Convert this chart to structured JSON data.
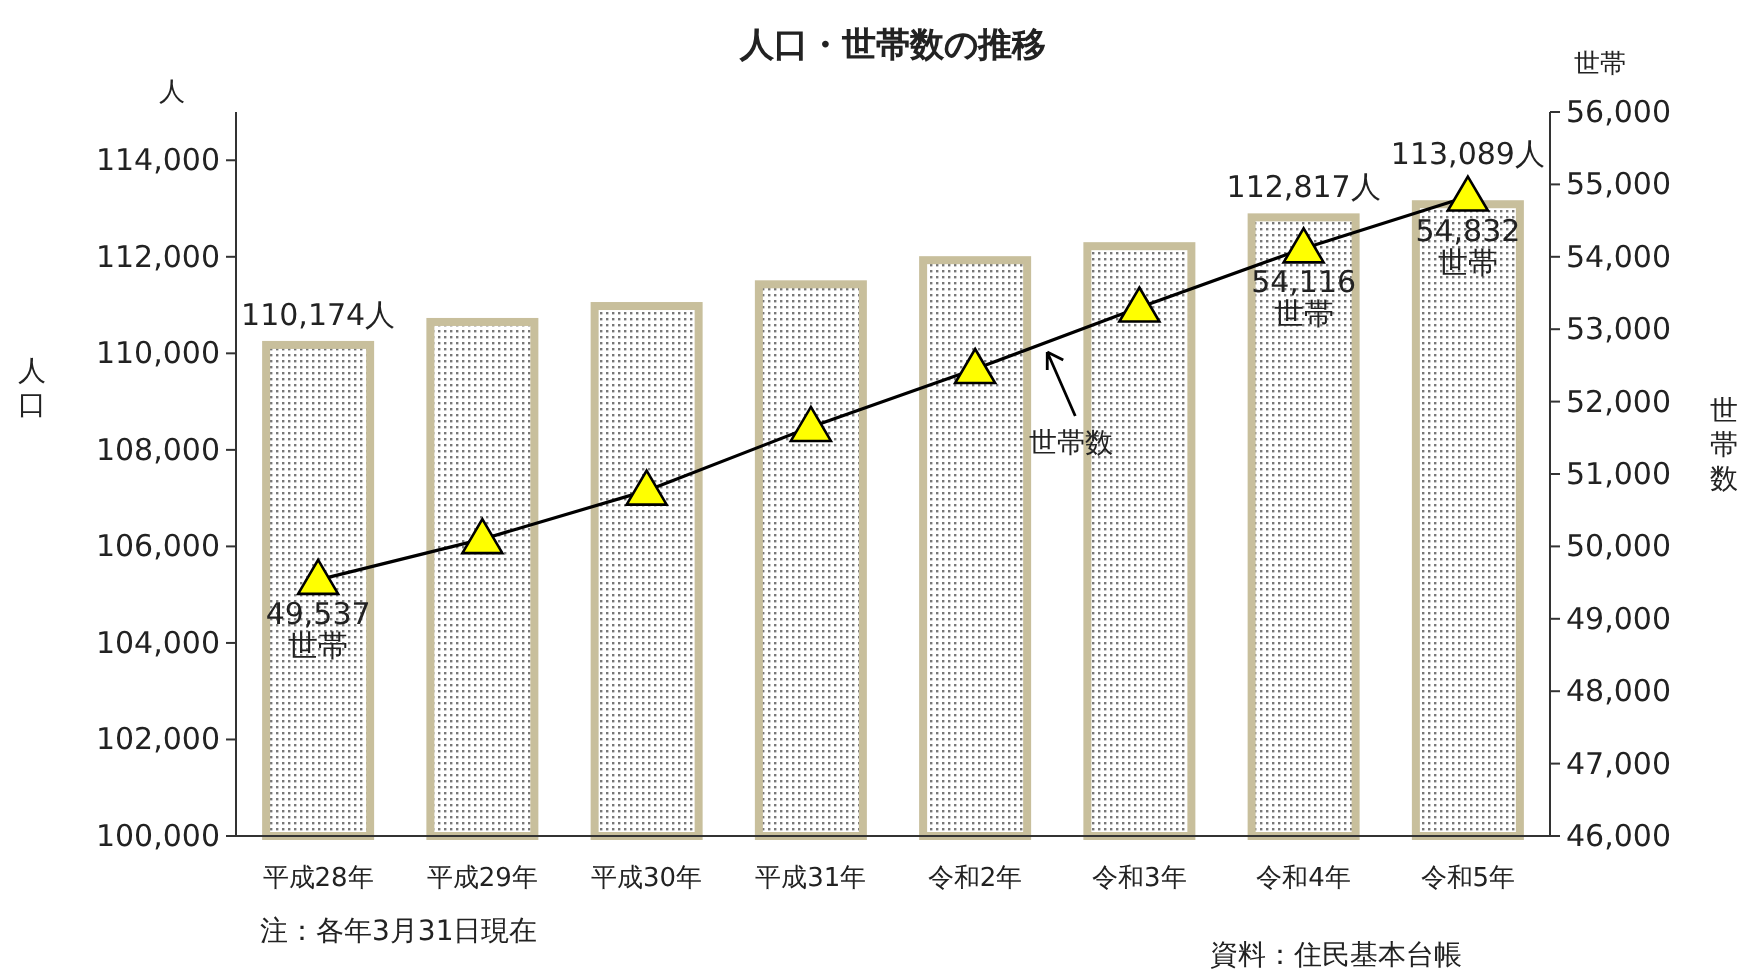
{
  "chart_data": {
    "type": "bar",
    "title": "人口・世帯数の推移",
    "categories": [
      "平成28年",
      "平成29年",
      "平成30年",
      "平成31年",
      "令和2年",
      "令和3年",
      "令和4年",
      "令和5年"
    ],
    "series": [
      {
        "color": "#c8bf9c",
        "values": [
          110174,
          110650,
          110980,
          111430,
          111930,
          112220,
          112817,
          113089
        ],
        "value_labels": [
          "110,174人",
          null,
          null,
          null,
          null,
          null,
          "112,817人",
          "113,089人"
        ]
      },
      {
        "type": "line",
        "axis": "y2",
        "color": "#ffff00",
        "marker": "triangle",
        "values": [
          49537,
          50100,
          50770,
          51650,
          52450,
          53300,
          54116,
          54832
        ],
        "value_labels": [
          "49,537 世帯",
          null,
          null,
          null,
          null,
          null,
          "54,116 世帯",
          "54,832 世帯"
        ]
      }
    ],
    "ylabel": "人口",
    "y2label": "世帯数",
    "ylim": [
      100000,
      115000
    ],
    "yticks": [
      {
        "value": 100000,
        "label": "100,000"
      },
      {
        "value": 102000,
        "label": "102,000"
      },
      {
        "value": 104000,
        "label": "104,000"
      },
      {
        "value": 106000,
        "label": "106,000"
      },
      {
        "value": 108000,
        "label": "108,000"
      },
      {
        "value": 110000,
        "label": "110,000"
      },
      {
        "value": 112000,
        "label": "112,000"
      },
      {
        "value": 114000,
        "label": "114,000"
      }
    ],
    "y2lim": [
      46000,
      56000
    ],
    "y2ticks": [
      {
        "value": 46000,
        "label": "46,000"
      },
      {
        "value": 47000,
        "label": "47,000"
      },
      {
        "value": 48000,
        "label": "48,000"
      },
      {
        "value": 49000,
        "label": "49,000"
      },
      {
        "value": 50000,
        "label": "50,000"
      },
      {
        "value": 51000,
        "label": "51,000"
      },
      {
        "value": 52000,
        "label": "52,000"
      },
      {
        "value": 53000,
        "label": "53,000"
      },
      {
        "value": 54000,
        "label": "54,000"
      },
      {
        "value": 55000,
        "label": "55,000"
      },
      {
        "value": 56000,
        "label": "56,000"
      }
    ],
    "annotations": [
      "人",
      "世帯",
      "世帯数",
      "注：各年3月31日現在",
      "資料：住民基本台帳"
    ],
    "grid": false
  }
}
